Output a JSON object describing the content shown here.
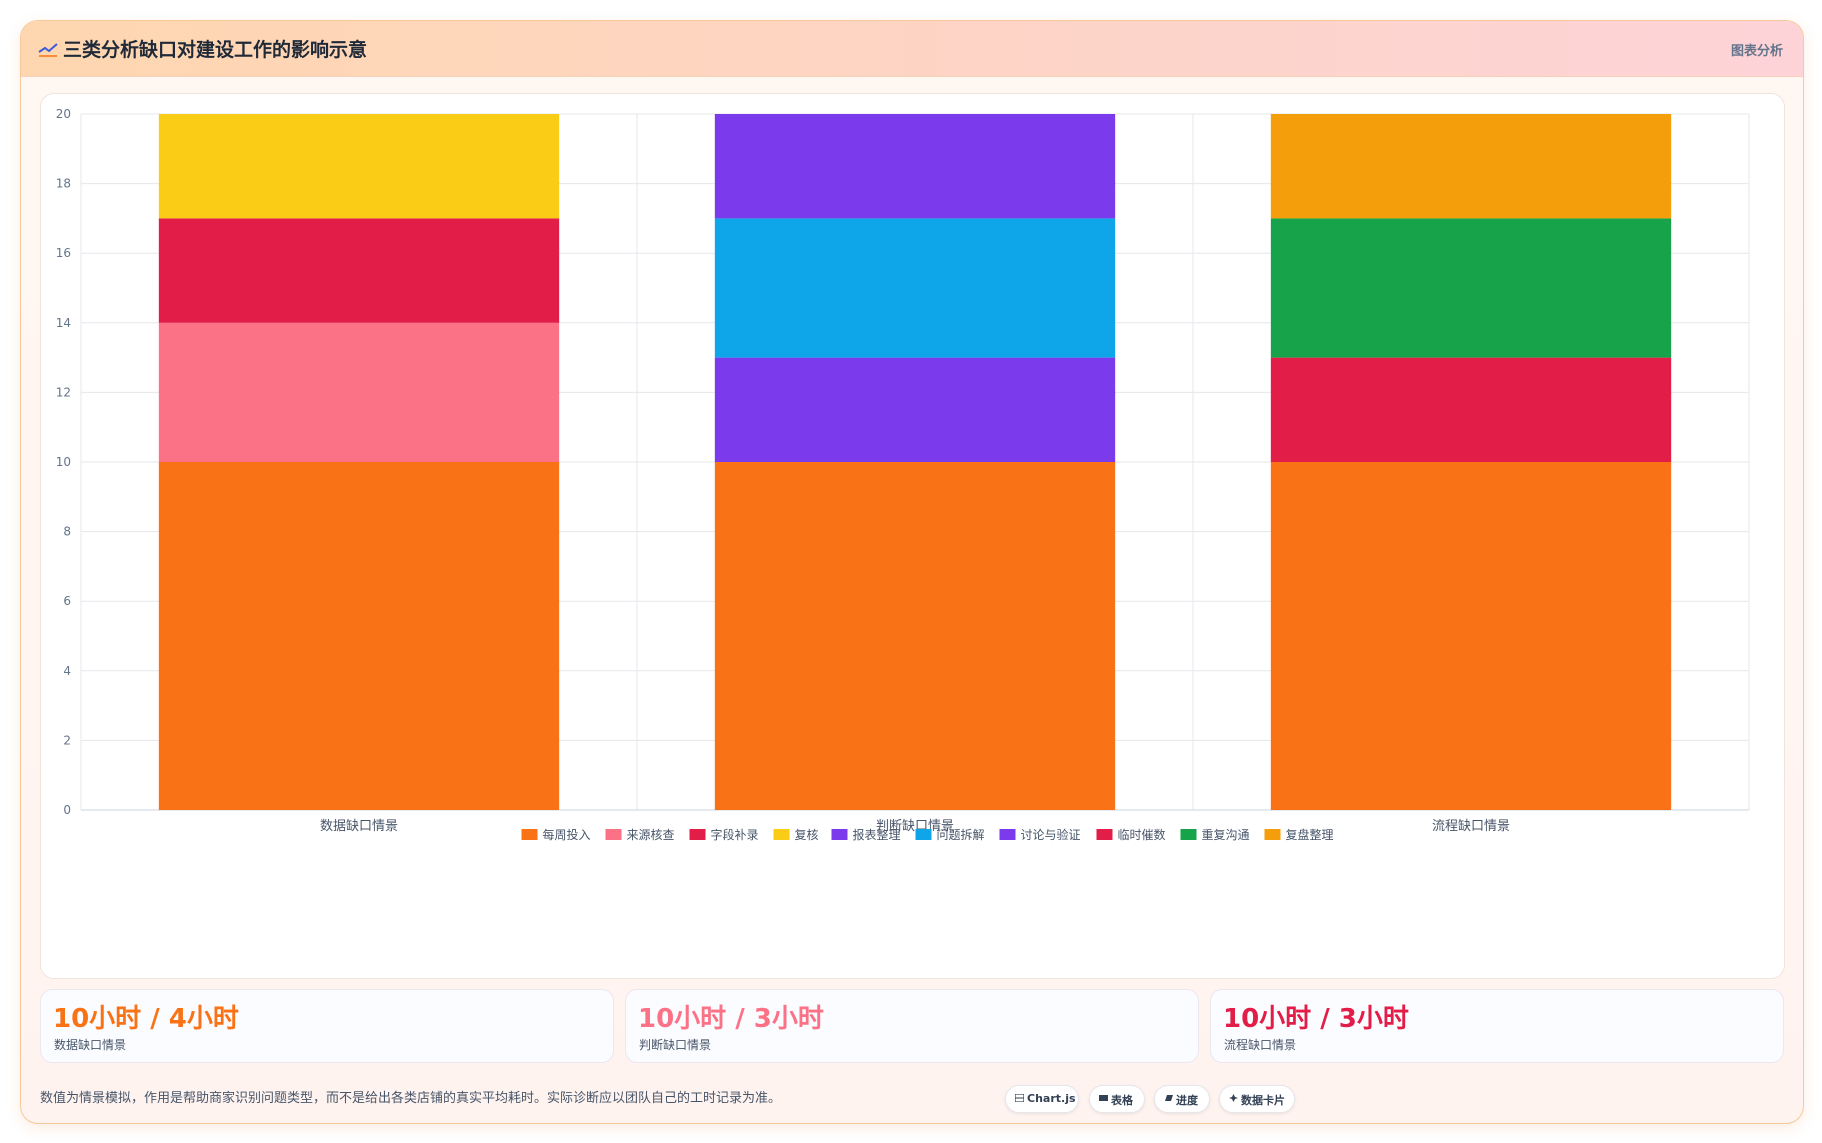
{
  "header": {
    "title": "三类分析缺口对建设工作的影响示意",
    "right_label": "图表分析",
    "icon": "chart-line-icon"
  },
  "chart_data": {
    "type": "bar",
    "stacked": true,
    "categories": [
      "数据缺口情景",
      "判断缺口情景",
      "流程缺口情景"
    ],
    "ylim": [
      0,
      20
    ],
    "yticks": [
      0,
      2,
      4,
      6,
      8,
      10,
      12,
      14,
      16,
      18,
      20
    ],
    "legend_position": "bottom",
    "grid": true,
    "series": [
      {
        "name": "每周投入",
        "color": "#f97316",
        "values": [
          10,
          10,
          10
        ]
      },
      {
        "name": "来源核查",
        "color": "#fb7185",
        "values": [
          4,
          0,
          0
        ]
      },
      {
        "name": "字段补录",
        "color": "#e11d48",
        "values": [
          3,
          0,
          0
        ]
      },
      {
        "name": "复核",
        "color": "#facc15",
        "values": [
          3,
          0,
          0
        ]
      },
      {
        "name": "报表整理",
        "color": "#7c3aed",
        "values": [
          0,
          3,
          0
        ]
      },
      {
        "name": "问题拆解",
        "color": "#0ea5e9",
        "values": [
          0,
          4,
          0
        ]
      },
      {
        "name": "讨论与验证",
        "color": "#7c3aed",
        "values": [
          0,
          3,
          0
        ]
      },
      {
        "name": "临时催数",
        "color": "#e11d48",
        "values": [
          0,
          0,
          3
        ]
      },
      {
        "name": "重复沟通",
        "color": "#16a34a",
        "values": [
          0,
          0,
          4
        ]
      },
      {
        "name": "复盘整理",
        "color": "#f59e0b",
        "values": [
          0,
          0,
          3
        ]
      }
    ]
  },
  "stats": [
    {
      "value": "10小时 / 4小时",
      "label": "数据缺口情景",
      "color": "#f97316"
    },
    {
      "value": "10小时 / 3小时",
      "label": "判断缺口情景",
      "color": "#fb7185"
    },
    {
      "value": "10小时 / 3小时",
      "label": "流程缺口情景",
      "color": "#e11d48"
    }
  ],
  "note": "数值为情景模拟，作用是帮助商家识别问题类型，而不是给出各类店铺的真实平均耗时。实际诊断应以团队自己的工时记录为准。",
  "pills": [
    {
      "label": "Chart.js",
      "icon": "chart-icon"
    },
    {
      "label": "表格",
      "icon": "table-icon"
    },
    {
      "label": "进度",
      "icon": "progress-icon"
    },
    {
      "label": "数据卡片",
      "icon": "card-icon"
    }
  ]
}
